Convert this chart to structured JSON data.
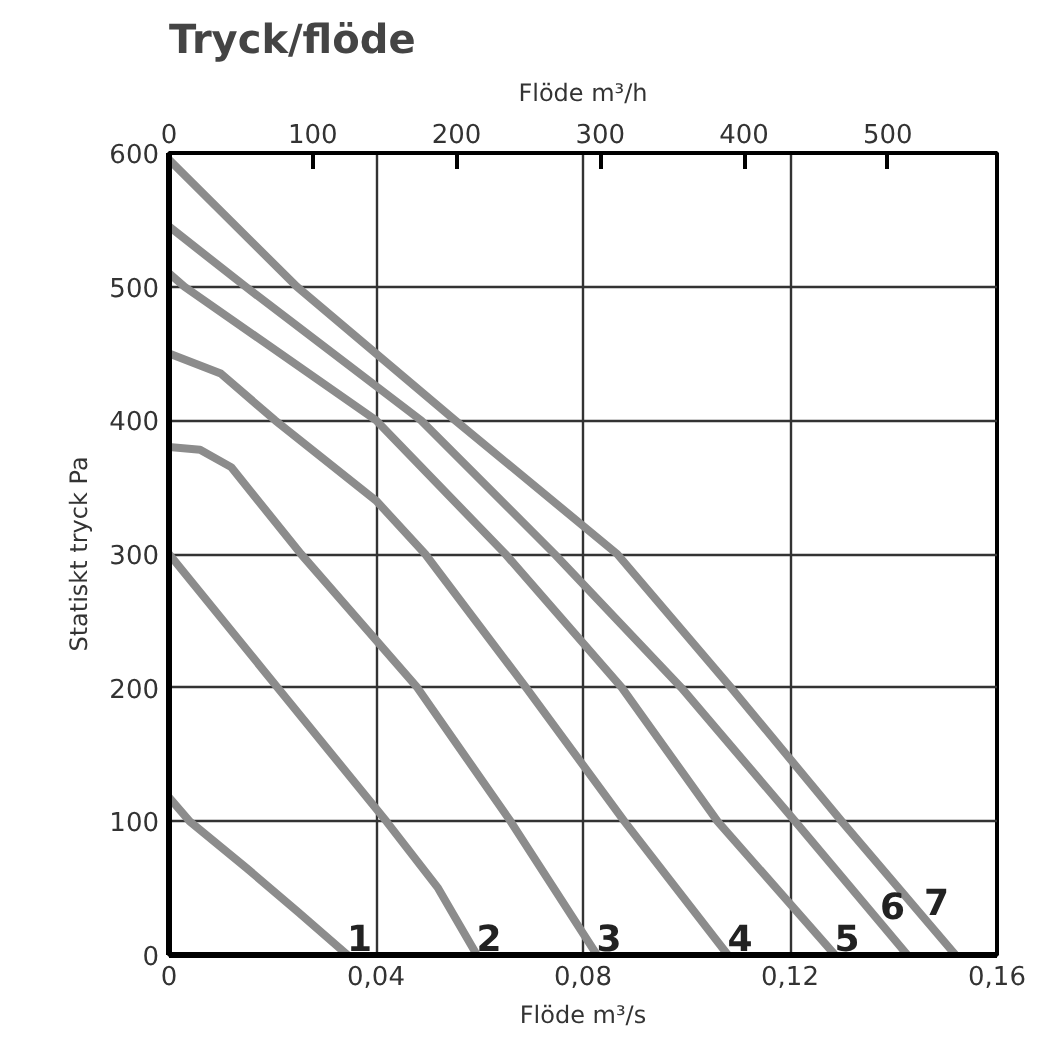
{
  "chart_data": {
    "type": "line",
    "title": "Tryck/flöde",
    "xlabel": "Flöde m³/s",
    "x2label": "Flöde m³/h",
    "ylabel": "Statiskt tryck Pa",
    "xlim": [
      0,
      0.16
    ],
    "xticks": [
      0,
      {
        "value": 0.04,
        "label": "0,04"
      },
      {
        "value": 0.08,
        "label": "0,08"
      },
      {
        "value": 0.12,
        "label": "0,12"
      },
      {
        "value": 0.16,
        "label": "0,16"
      }
    ],
    "x2lim": [
      0,
      576
    ],
    "x2ticks": [
      0,
      100,
      200,
      300,
      400,
      500
    ],
    "ylim": [
      0,
      600
    ],
    "yticks": [
      0,
      100,
      200,
      300,
      400,
      500,
      600
    ],
    "grid": true,
    "line_style": "solid",
    "series": [
      {
        "color": "#8c8c8c",
        "x": [
          0,
          0.004,
          0.015,
          0.025,
          0.0345
        ],
        "values": [
          118,
          100,
          65,
          32,
          0
        ]
      },
      {
        "color": "#8c8c8c",
        "x": [
          0,
          0.021,
          0.042,
          0.052,
          0.0595
        ],
        "values": [
          300,
          200,
          100,
          50,
          0
        ]
      },
      {
        "color": "#8c8c8c",
        "x": [
          0,
          0.006,
          0.012,
          0.0255,
          0.048,
          0.066,
          0.0827
        ],
        "values": [
          380,
          378,
          365,
          300,
          200,
          100,
          0
        ]
      },
      {
        "color": "#8c8c8c",
        "x": [
          0,
          0.01,
          0.0205,
          0.04,
          0.0495,
          0.069,
          0.088,
          0.108
        ],
        "values": [
          450,
          435,
          400,
          340,
          300,
          200,
          100,
          0
        ]
      },
      {
        "color": "#8c8c8c",
        "x": [
          0,
          0.003,
          0.04,
          0.065,
          0.0875,
          0.106,
          0.1287
        ],
        "values": [
          510,
          500,
          400,
          300,
          200,
          100,
          0
        ]
      },
      {
        "color": "#8c8c8c",
        "x": [
          0,
          0.0148,
          0.0487,
          0.0745,
          0.099,
          0.121,
          0.1427
        ],
        "values": [
          545,
          500,
          400,
          300,
          200,
          100,
          0
        ]
      },
      {
        "color": "#8c8c8c",
        "x": [
          0,
          0.0247,
          0.0553,
          0.0866,
          0.1086,
          0.13,
          0.152
        ],
        "values": [
          595,
          500,
          400,
          300,
          200,
          100,
          0
        ]
      }
    ],
    "annotations": [
      {
        "text": "1",
        "x": 0.0345,
        "y": 0
      },
      {
        "text": "2",
        "x": 0.0595,
        "y": 0
      },
      {
        "text": "3",
        "x": 0.0827,
        "y": 0
      },
      {
        "text": "4",
        "x": 0.108,
        "y": 0
      },
      {
        "text": "5",
        "x": 0.1287,
        "y": 0
      },
      {
        "text": "6",
        "x": 0.1375,
        "y": 24
      },
      {
        "text": "7",
        "x": 0.146,
        "y": 27
      }
    ]
  }
}
